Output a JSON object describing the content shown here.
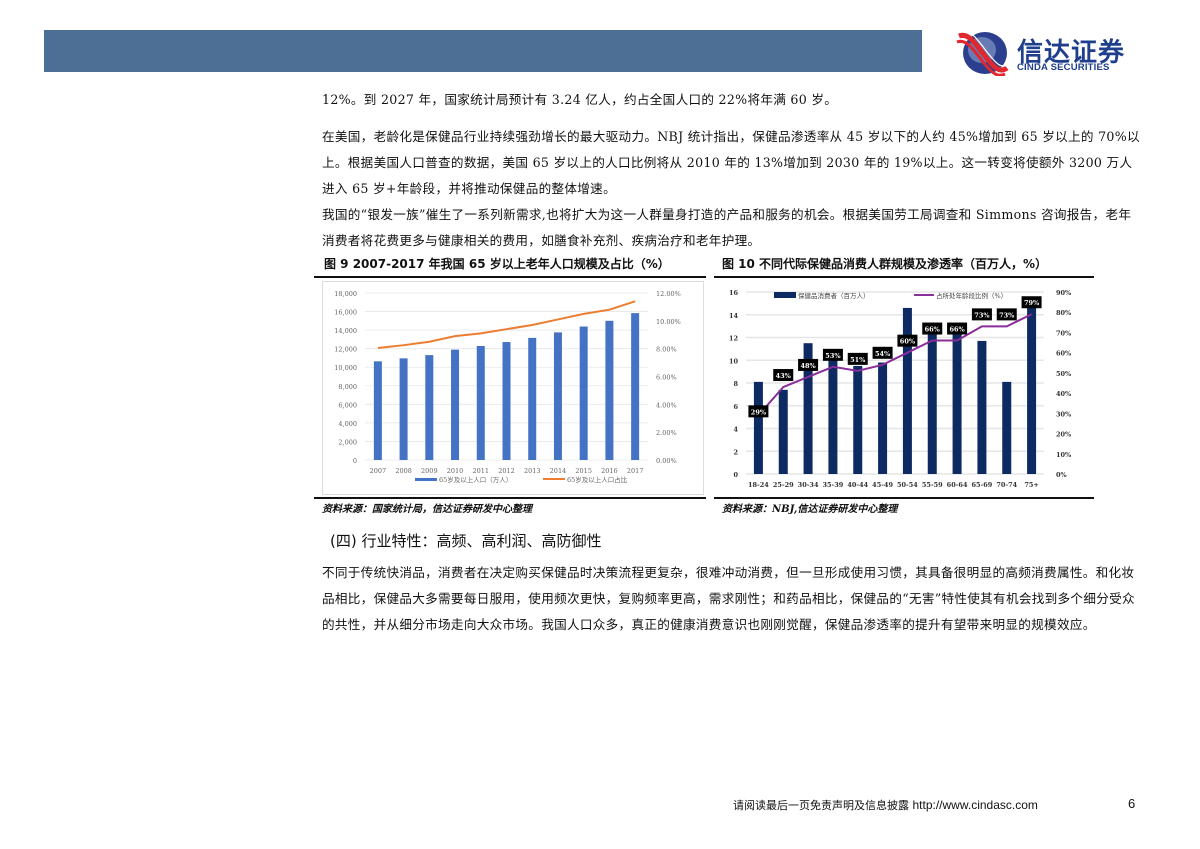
{
  "header": {
    "bar_color": "#4d6f96",
    "logo": {
      "cn": "信达证券",
      "en": "CINDA SECURITIES",
      "icon": "cinda-logo-icon"
    }
  },
  "paragraphs": [
    "12%。到 2027 年，国家统计局预计有 3.24 亿人，约占全国人口的 22%将年满 60 岁。",
    "在美国，老龄化是保健品行业持续强劲增长的最大驱动力。NBJ 统计指出，保健品渗透率从 45 岁以下的人约 45%增加到 65 岁以上的 70%以上。根据美国人口普查的数据，美国 65 岁以上的人口比例将从 2010 年的 13%增加到 2030 年的 19%以上。这一转变将使额外 3200 万人进入 65 岁+年龄段，并将推动保健品的整体增速。",
    "我国的“银发一族”催生了一系列新需求,也将扩大为这一人群量身打造的产品和服务的机会。根据美国劳工局调查和 Simmons 咨询报告，老年消费者将花费更多与健康相关的费用，如膳食补充剂、疾病治疗和老年护理。"
  ],
  "figures": {
    "fig9": {
      "title": "图 9 2007-2017 年我国 65 岁以上老年人口规模及占比（%）",
      "source": "资料来源：国家统计局，信达证券研发中心整理"
    },
    "fig10": {
      "title": "图 10 不同代际保健品消费人群规模及渗透率（百万人，%）",
      "source": "资料来源：NBJ,信达证券研发中心整理"
    }
  },
  "chart_data": [
    {
      "type": "bar",
      "title": "2007-2017年我国65岁以上老年人口规模及占比（%）",
      "categories": [
        "2007",
        "2008",
        "2009",
        "2010",
        "2011",
        "2012",
        "2013",
        "2014",
        "2015",
        "2016",
        "2017"
      ],
      "series": [
        {
          "name": "65岁及以上人口（万人）",
          "type": "bar",
          "axis": "left",
          "color": "#4472c4",
          "values": [
            10636,
            10956,
            11307,
            11894,
            12288,
            12714,
            13161,
            13755,
            14386,
            15003,
            15831
          ]
        },
        {
          "name": "65岁及以上人口占比",
          "type": "line",
          "axis": "right",
          "color": "#ed7d31",
          "values": [
            8.05,
            8.25,
            8.5,
            8.9,
            9.1,
            9.4,
            9.7,
            10.1,
            10.5,
            10.8,
            11.4
          ]
        }
      ],
      "y_left": {
        "ylim": [
          0,
          18000
        ],
        "ticks": [
          "0",
          "2,000",
          "4,000",
          "6,000",
          "8,000",
          "10,000",
          "12,000",
          "14,000",
          "16,000",
          "18,000"
        ]
      },
      "y_right": {
        "ylim": [
          0,
          12
        ],
        "ticks": [
          "0.00%",
          "2.00%",
          "4.00%",
          "6.00%",
          "8.00%",
          "10.00%",
          "12.00%"
        ]
      },
      "grid": true,
      "legend_position": "bottom"
    },
    {
      "type": "bar",
      "title": "不同代际保健品消费人群规模及渗透率（百万人，%）",
      "categories": [
        "18-24",
        "25-29",
        "30-34",
        "35-39",
        "40-44",
        "45-49",
        "50-54",
        "55-59",
        "60-64",
        "65-69",
        "70-74",
        "75+"
      ],
      "series": [
        {
          "name": "保健品消费者（百万人）",
          "type": "bar",
          "axis": "left",
          "color": "#0d2a63",
          "values": [
            8.1,
            7.4,
            11.5,
            10.2,
            9.5,
            9.8,
            14.6,
            12.4,
            12.8,
            11.7,
            8.1,
            14.7
          ]
        },
        {
          "name": "占所处年龄段比例（%）",
          "type": "line",
          "axis": "right",
          "color": "#8b2d9b",
          "values": [
            29,
            43,
            48,
            53,
            51,
            54,
            60,
            66,
            66,
            73,
            73,
            79
          ],
          "labels": [
            "29%",
            "43%",
            "48%",
            "53%",
            "51%",
            "54%",
            "60%",
            "66%",
            "66%",
            "73%",
            "73%",
            "79%"
          ]
        }
      ],
      "y_left": {
        "ylim": [
          0,
          16
        ],
        "ticks": [
          "0",
          "2",
          "4",
          "6",
          "8",
          "10",
          "12",
          "14",
          "16"
        ]
      },
      "y_right": {
        "ylim": [
          0,
          90
        ],
        "ticks": [
          "0%",
          "10%",
          "20%",
          "30%",
          "40%",
          "50%",
          "60%",
          "70%",
          "80%",
          "90%"
        ]
      },
      "grid": true,
      "legend_position": "top"
    }
  ],
  "section": {
    "heading": "(四) 行业特性：高频、高利润、高防御性",
    "paragraph": "不同于传统快消品，消费者在决定购买保健品时决策流程更复杂，很难冲动消费，但一旦形成使用习惯，其具备很明显的高频消费属性。和化妆品相比，保健品大多需要每日服用，使用频次更快，复购频率更高，需求刚性；和药品相比，保健品的“无害”特性使其有机会找到多个细分受众的共性，并从细分市场走向大众市场。我国人口众多，真正的健康消费意识也刚刚觉醒，保健品渗透率的提升有望带来明显的规模效应。"
  },
  "footer": {
    "disclaimer": "请阅读最后一页免责声明及信息披露",
    "url": "http://www.cindasc.com",
    "page": "6"
  }
}
